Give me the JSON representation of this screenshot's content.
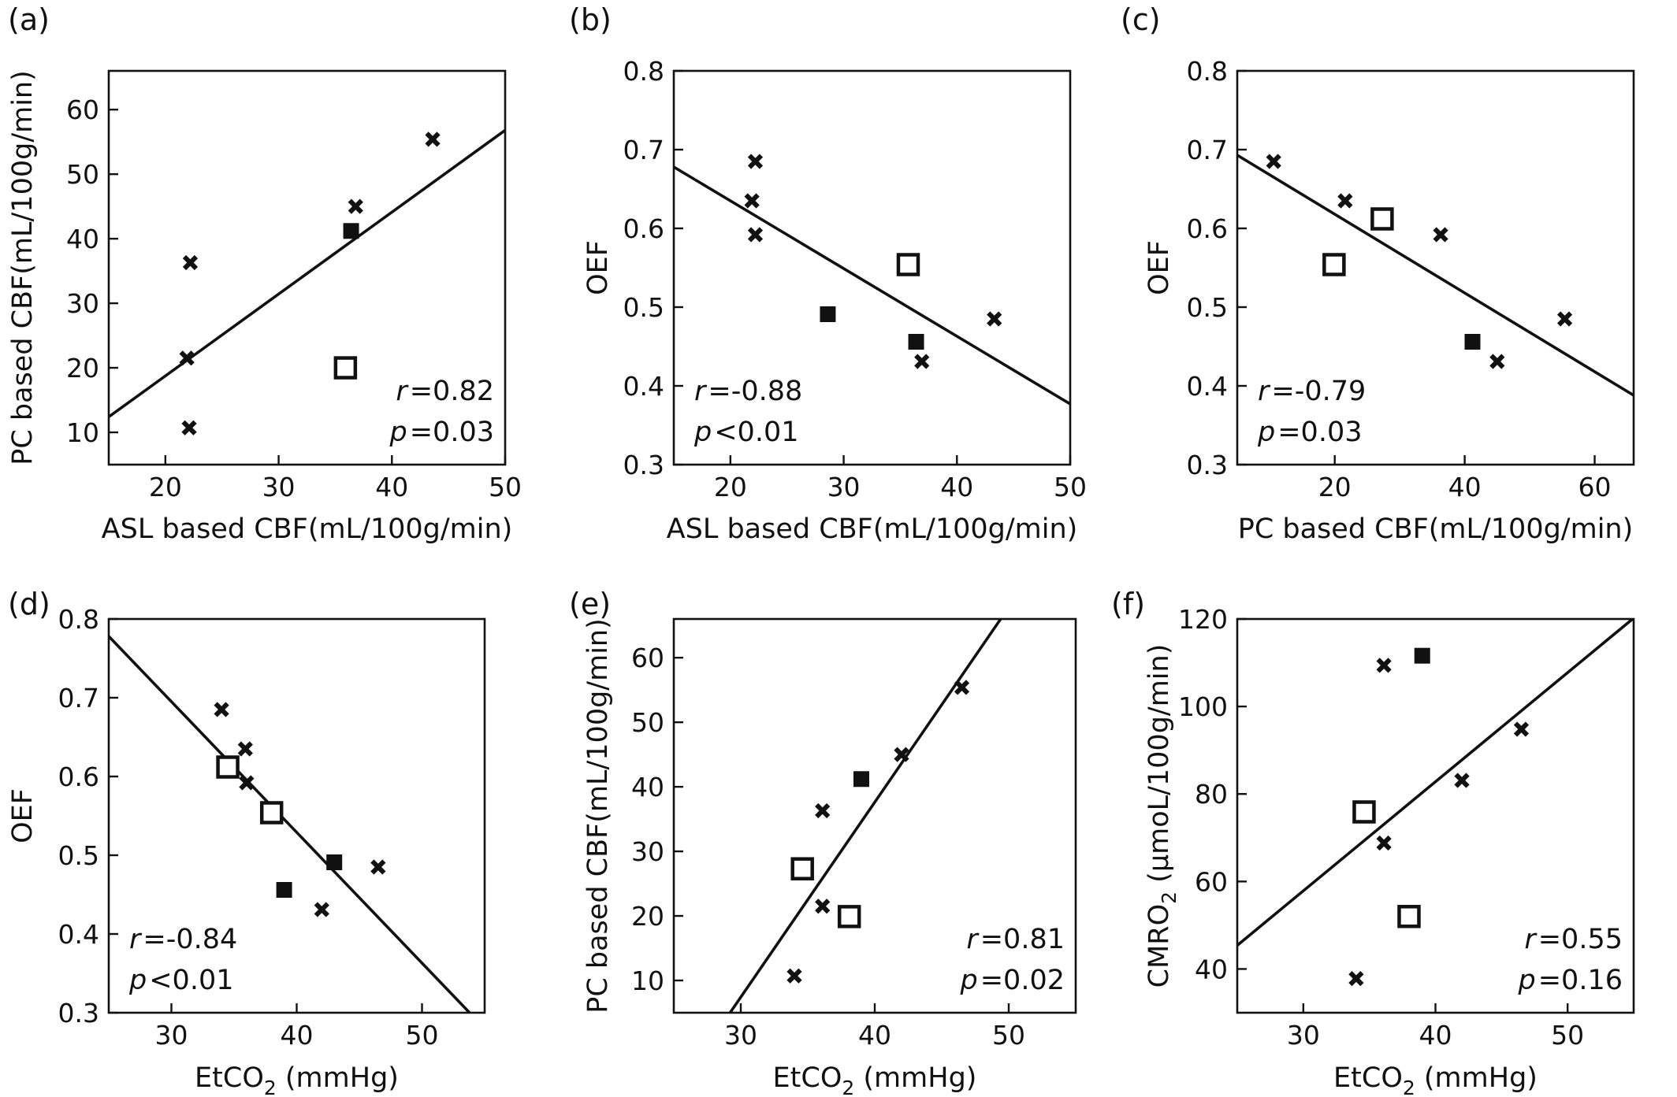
{
  "chart_data": [
    {
      "id": "a",
      "panel_label": "(a)",
      "type": "scatter",
      "xlabel": "ASL based CBF(mL/100g/min)",
      "ylabel": "PC based CBF(mL/100g/min)",
      "xlim": [
        15,
        50
      ],
      "ylim": [
        5,
        66
      ],
      "xticks": [
        20,
        30,
        40,
        50
      ],
      "yticks": [
        10,
        20,
        30,
        40,
        50,
        60
      ],
      "series": [
        {
          "marker": "cross",
          "points": [
            [
              22.2,
              36.3
            ],
            [
              21.9,
              21.5
            ],
            [
              22.1,
              10.7
            ],
            [
              36.8,
              45.0
            ],
            [
              43.6,
              55.4
            ]
          ]
        },
        {
          "marker": "filled-square",
          "points": [
            [
              36.4,
              41.2
            ]
          ]
        },
        {
          "marker": "open-square",
          "points": [
            [
              35.9,
              20.0
            ]
          ]
        }
      ],
      "fit_line": [
        [
          15,
          12.4
        ],
        [
          50,
          56.8
        ]
      ],
      "stats": {
        "r_label": "r",
        "r_text": "=0.82",
        "p_label": "p",
        "p_text": "=0.03"
      },
      "stats_position": "bottom-right"
    },
    {
      "id": "b",
      "panel_label": "(b)",
      "type": "scatter",
      "xlabel": "ASL based CBF(mL/100g/min)",
      "ylabel": "OEF",
      "xlim": [
        15,
        50
      ],
      "ylim": [
        0.3,
        0.8
      ],
      "xticks": [
        20,
        30,
        40,
        50
      ],
      "yticks": [
        "0.3",
        "0.4",
        "0.5",
        "0.6",
        "0.7",
        "0.8"
      ],
      "series": [
        {
          "marker": "cross",
          "points": [
            [
              22.2,
              0.685
            ],
            [
              21.9,
              0.635
            ],
            [
              22.2,
              0.592
            ],
            [
              43.3,
              0.485
            ],
            [
              36.9,
              0.431
            ]
          ]
        },
        {
          "marker": "filled-square",
          "points": [
            [
              28.6,
              0.491
            ],
            [
              36.4,
              0.456
            ]
          ]
        },
        {
          "marker": "open-square",
          "points": [
            [
              35.7,
              0.554
            ]
          ]
        }
      ],
      "fit_line": [
        [
          15,
          0.678
        ],
        [
          50,
          0.377
        ]
      ],
      "stats": {
        "r_label": "r",
        "r_text": "=-0.88",
        "p_label": "p",
        "p_text": "<0.01"
      },
      "stats_position": "bottom-left"
    },
    {
      "id": "c",
      "panel_label": "(c)",
      "type": "scatter",
      "xlabel": "PC based CBF(mL/100g/min)",
      "ylabel": "OEF",
      "xlim": [
        5,
        66
      ],
      "ylim": [
        0.3,
        0.8
      ],
      "xticks": [
        20,
        40,
        60
      ],
      "yticks": [
        "0.3",
        "0.4",
        "0.5",
        "0.6",
        "0.7",
        "0.8"
      ],
      "series": [
        {
          "marker": "cross",
          "points": [
            [
              10.6,
              0.685
            ],
            [
              21.6,
              0.635
            ],
            [
              36.3,
              0.592
            ],
            [
              55.4,
              0.485
            ],
            [
              45.0,
              0.431
            ]
          ]
        },
        {
          "marker": "filled-square",
          "points": [
            [
              41.2,
              0.456
            ]
          ]
        },
        {
          "marker": "open-square",
          "points": [
            [
              27.3,
              0.612
            ],
            [
              19.9,
              0.554
            ]
          ]
        }
      ],
      "fit_line": [
        [
          5,
          0.693
        ],
        [
          66,
          0.388
        ]
      ],
      "stats": {
        "r_label": "r",
        "r_text": "=-0.79",
        "p_label": "p",
        "p_text": "=0.03"
      },
      "stats_position": "bottom-left"
    },
    {
      "id": "d",
      "panel_label": "(d)",
      "type": "scatter",
      "xlabel": "EtCO",
      "xlabel_sub": "2",
      "xlabel_unit": " (mmHg)",
      "ylabel": "OEF",
      "xlim": [
        25,
        55
      ],
      "ylim": [
        0.3,
        0.8
      ],
      "xticks": [
        30,
        40,
        50
      ],
      "yticks": [
        "0.3",
        "0.4",
        "0.5",
        "0.6",
        "0.7",
        "0.8"
      ],
      "series": [
        {
          "marker": "cross",
          "points": [
            [
              34.0,
              0.685
            ],
            [
              35.9,
              0.635
            ],
            [
              36.0,
              0.592
            ],
            [
              46.5,
              0.485
            ],
            [
              42.0,
              0.431
            ]
          ]
        },
        {
          "marker": "filled-square",
          "points": [
            [
              43.0,
              0.491
            ],
            [
              39.0,
              0.456
            ]
          ]
        },
        {
          "marker": "open-square",
          "points": [
            [
              34.5,
              0.612
            ],
            [
              38.0,
              0.554
            ]
          ]
        }
      ],
      "fit_line": [
        [
          25,
          0.778
        ],
        [
          53.8,
          0.3
        ]
      ],
      "stats": {
        "r_label": "r",
        "r_text": "=-0.84",
        "p_label": "p",
        "p_text": "<0.01"
      },
      "stats_position": "bottom-left"
    },
    {
      "id": "e",
      "panel_label": "(e)",
      "type": "scatter",
      "xlabel": "EtCO",
      "xlabel_sub": "2",
      "xlabel_unit": " (mmHg)",
      "ylabel": "PC based CBF(mL/100g/min)",
      "xlim": [
        25,
        55
      ],
      "ylim": [
        5,
        66
      ],
      "xticks": [
        30,
        40,
        50
      ],
      "yticks": [
        10,
        20,
        30,
        40,
        50,
        60
      ],
      "series": [
        {
          "marker": "cross",
          "points": [
            [
              36.1,
              36.3
            ],
            [
              36.1,
              21.5
            ],
            [
              34.0,
              10.7
            ],
            [
              42.0,
              45.0
            ],
            [
              46.5,
              55.4
            ]
          ]
        },
        {
          "marker": "filled-square",
          "points": [
            [
              39.0,
              41.2
            ]
          ]
        },
        {
          "marker": "open-square",
          "points": [
            [
              34.6,
              27.3
            ],
            [
              38.1,
              19.9
            ]
          ]
        }
      ],
      "fit_line": [
        [
          29.2,
          5
        ],
        [
          49.4,
          66
        ]
      ],
      "stats": {
        "r_label": "r",
        "r_text": "=0.81",
        "p_label": "p",
        "p_text": "=0.02"
      },
      "stats_position": "bottom-right"
    },
    {
      "id": "f",
      "panel_label": "(f)",
      "type": "scatter",
      "xlabel": "EtCO",
      "xlabel_sub": "2",
      "xlabel_unit": " (mmHg)",
      "ylabel": "CMRO",
      "ylabel_sub": "2",
      "ylabel_unit": " (μmoL/100g/min)",
      "xlim": [
        25,
        55
      ],
      "ylim": [
        30,
        120
      ],
      "xticks": [
        30,
        40,
        50
      ],
      "yticks": [
        40,
        60,
        80,
        100,
        120
      ],
      "series": [
        {
          "marker": "cross",
          "points": [
            [
              36.1,
              109.4
            ],
            [
              46.5,
              94.8
            ],
            [
              42.0,
              83.1
            ],
            [
              36.1,
              68.8
            ],
            [
              34.0,
              37.8
            ]
          ]
        },
        {
          "marker": "filled-square",
          "points": [
            [
              39.0,
              111.6
            ]
          ]
        },
        {
          "marker": "open-square",
          "points": [
            [
              34.6,
              75.9
            ],
            [
              38.0,
              52.0
            ]
          ]
        }
      ],
      "fit_line": [
        [
          25,
          45.4
        ],
        [
          55,
          120.2
        ]
      ],
      "stats": {
        "r_label": "r",
        "r_text": "=0.55",
        "p_label": "p",
        "p_text": "=0.16"
      },
      "stats_position": "bottom-right"
    }
  ]
}
